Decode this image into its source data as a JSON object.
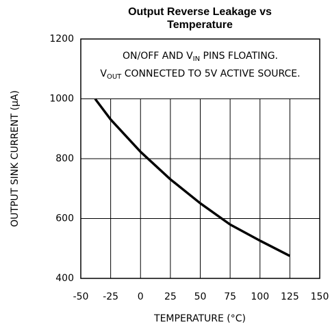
{
  "chart_data": {
    "type": "line",
    "title": [
      "Output Reverse Leakage vs",
      "Temperature"
    ],
    "x_label": "TEMPERATURE (°C)",
    "y_label": "OUTPUT SINK CURRENT (μA)",
    "annotations": [
      [
        "ON/OFF AND V",
        "IN",
        " PINS FLOATING."
      ],
      [
        "V",
        "OUT",
        " CONNECTED TO 5V ACTIVE SOURCE."
      ]
    ],
    "x": [
      -38,
      -25,
      0,
      25,
      50,
      75,
      100,
      125
    ],
    "values": [
      1000,
      931,
      823,
      731,
      651,
      580,
      526,
      475
    ],
    "color": "#000000",
    "xlim": [
      -50,
      150
    ],
    "xticks": [
      -50,
      -25,
      0,
      25,
      50,
      75,
      100,
      125,
      150
    ],
    "ylim": [
      400,
      1200
    ],
    "yticks": [
      400,
      600,
      800,
      1000,
      1200
    ],
    "grid": true
  }
}
